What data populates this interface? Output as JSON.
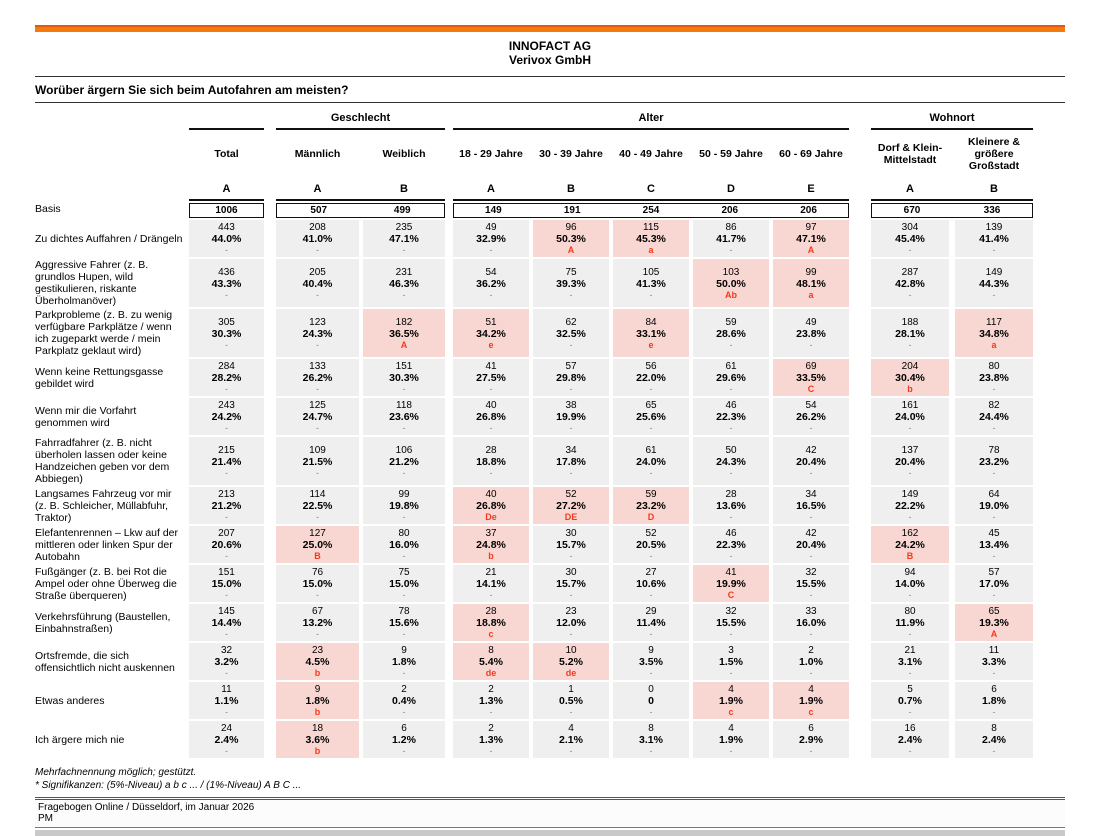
{
  "page": {
    "company": "INNOFACT AG",
    "subtitle": "Verivox GmbH",
    "question": "Worüber ärgern Sie sich beim Autofahren am meisten?"
  },
  "columns": {
    "groups": [
      {
        "label": ""
      },
      {
        "label": "Geschlecht"
      },
      {
        "label": "Alter"
      },
      {
        "label": "Wohnort"
      }
    ],
    "names": [
      "Total",
      "Männlich",
      "Weiblich",
      "18 - 29 Jahre",
      "30 - 39 Jahre",
      "40 - 49 Jahre",
      "50 - 59 Jahre",
      "60 - 69 Jahre",
      "Dorf & Klein-Mittelstadt",
      "Kleinere & größere Großstadt"
    ],
    "letters": [
      "A",
      "A",
      "B",
      "A",
      "B",
      "C",
      "D",
      "E",
      "A",
      "B"
    ]
  },
  "basis": {
    "label": "Basis",
    "values": [
      "1006",
      "507",
      "499",
      "149",
      "191",
      "254",
      "206",
      "206",
      "670",
      "336"
    ]
  },
  "rows": [
    {
      "label": "Zu dichtes Auffahren / Drängeln",
      "cells": [
        {
          "n": "443",
          "p": "44.0%",
          "s": "-",
          "hl": false
        },
        {
          "n": "208",
          "p": "41.0%",
          "s": "-",
          "hl": false
        },
        {
          "n": "235",
          "p": "47.1%",
          "s": "-",
          "hl": false
        },
        {
          "n": "49",
          "p": "32.9%",
          "s": "-",
          "hl": false
        },
        {
          "n": "96",
          "p": "50.3%",
          "s": "A",
          "hl": true
        },
        {
          "n": "115",
          "p": "45.3%",
          "s": "a",
          "hl": true
        },
        {
          "n": "86",
          "p": "41.7%",
          "s": "-",
          "hl": false
        },
        {
          "n": "97",
          "p": "47.1%",
          "s": "A",
          "hl": true
        },
        {
          "n": "304",
          "p": "45.4%",
          "s": "-",
          "hl": false
        },
        {
          "n": "139",
          "p": "41.4%",
          "s": "-",
          "hl": false
        }
      ]
    },
    {
      "label": "Aggressive Fahrer (z. B. grundlos Hupen, wild gestikulieren, riskante Überholmanöver)",
      "cells": [
        {
          "n": "436",
          "p": "43.3%",
          "s": "-",
          "hl": false
        },
        {
          "n": "205",
          "p": "40.4%",
          "s": "-",
          "hl": false
        },
        {
          "n": "231",
          "p": "46.3%",
          "s": "-",
          "hl": false
        },
        {
          "n": "54",
          "p": "36.2%",
          "s": "-",
          "hl": false
        },
        {
          "n": "75",
          "p": "39.3%",
          "s": "-",
          "hl": false
        },
        {
          "n": "105",
          "p": "41.3%",
          "s": "-",
          "hl": false
        },
        {
          "n": "103",
          "p": "50.0%",
          "s": "Ab",
          "hl": true
        },
        {
          "n": "99",
          "p": "48.1%",
          "s": "a",
          "hl": true
        },
        {
          "n": "287",
          "p": "42.8%",
          "s": "-",
          "hl": false
        },
        {
          "n": "149",
          "p": "44.3%",
          "s": "-",
          "hl": false
        }
      ]
    },
    {
      "label": "Parkprobleme (z. B. zu wenig verfügbare Parkplätze / wenn ich zugeparkt werde / mein Parkplatz geklaut wird)",
      "cells": [
        {
          "n": "305",
          "p": "30.3%",
          "s": "-",
          "hl": false
        },
        {
          "n": "123",
          "p": "24.3%",
          "s": "-",
          "hl": false
        },
        {
          "n": "182",
          "p": "36.5%",
          "s": "A",
          "hl": true
        },
        {
          "n": "51",
          "p": "34.2%",
          "s": "e",
          "hl": true
        },
        {
          "n": "62",
          "p": "32.5%",
          "s": "-",
          "hl": false
        },
        {
          "n": "84",
          "p": "33.1%",
          "s": "e",
          "hl": true
        },
        {
          "n": "59",
          "p": "28.6%",
          "s": "-",
          "hl": false
        },
        {
          "n": "49",
          "p": "23.8%",
          "s": "-",
          "hl": false
        },
        {
          "n": "188",
          "p": "28.1%",
          "s": "-",
          "hl": false
        },
        {
          "n": "117",
          "p": "34.8%",
          "s": "a",
          "hl": true
        }
      ]
    },
    {
      "label": "Wenn keine Rettungsgasse gebildet wird",
      "cells": [
        {
          "n": "284",
          "p": "28.2%",
          "s": "-",
          "hl": false
        },
        {
          "n": "133",
          "p": "26.2%",
          "s": "-",
          "hl": false
        },
        {
          "n": "151",
          "p": "30.3%",
          "s": "-",
          "hl": false
        },
        {
          "n": "41",
          "p": "27.5%",
          "s": "-",
          "hl": false
        },
        {
          "n": "57",
          "p": "29.8%",
          "s": "-",
          "hl": false
        },
        {
          "n": "56",
          "p": "22.0%",
          "s": "-",
          "hl": false
        },
        {
          "n": "61",
          "p": "29.6%",
          "s": "-",
          "hl": false
        },
        {
          "n": "69",
          "p": "33.5%",
          "s": "C",
          "hl": true
        },
        {
          "n": "204",
          "p": "30.4%",
          "s": "b",
          "hl": true
        },
        {
          "n": "80",
          "p": "23.8%",
          "s": "-",
          "hl": false
        }
      ]
    },
    {
      "label": "Wenn mir die Vorfahrt genommen wird",
      "cells": [
        {
          "n": "243",
          "p": "24.2%",
          "s": "-",
          "hl": false
        },
        {
          "n": "125",
          "p": "24.7%",
          "s": "-",
          "hl": false
        },
        {
          "n": "118",
          "p": "23.6%",
          "s": "-",
          "hl": false
        },
        {
          "n": "40",
          "p": "26.8%",
          "s": "-",
          "hl": false
        },
        {
          "n": "38",
          "p": "19.9%",
          "s": "-",
          "hl": false
        },
        {
          "n": "65",
          "p": "25.6%",
          "s": "-",
          "hl": false
        },
        {
          "n": "46",
          "p": "22.3%",
          "s": "-",
          "hl": false
        },
        {
          "n": "54",
          "p": "26.2%",
          "s": "-",
          "hl": false
        },
        {
          "n": "161",
          "p": "24.0%",
          "s": "-",
          "hl": false
        },
        {
          "n": "82",
          "p": "24.4%",
          "s": "-",
          "hl": false
        }
      ]
    },
    {
      "label": "Fahrradfahrer (z. B. nicht überholen lassen oder keine Handzeichen geben vor dem Abbiegen)",
      "cells": [
        {
          "n": "215",
          "p": "21.4%",
          "s": "-",
          "hl": false
        },
        {
          "n": "109",
          "p": "21.5%",
          "s": "-",
          "hl": false
        },
        {
          "n": "106",
          "p": "21.2%",
          "s": "-",
          "hl": false
        },
        {
          "n": "28",
          "p": "18.8%",
          "s": "-",
          "hl": false
        },
        {
          "n": "34",
          "p": "17.8%",
          "s": "-",
          "hl": false
        },
        {
          "n": "61",
          "p": "24.0%",
          "s": "-",
          "hl": false
        },
        {
          "n": "50",
          "p": "24.3%",
          "s": "-",
          "hl": false
        },
        {
          "n": "42",
          "p": "20.4%",
          "s": "-",
          "hl": false
        },
        {
          "n": "137",
          "p": "20.4%",
          "s": "-",
          "hl": false
        },
        {
          "n": "78",
          "p": "23.2%",
          "s": "-",
          "hl": false
        }
      ]
    },
    {
      "label": "Langsames Fahrzeug vor mir (z. B. Schleicher, Müllabfuhr, Traktor)",
      "cells": [
        {
          "n": "213",
          "p": "21.2%",
          "s": "-",
          "hl": false
        },
        {
          "n": "114",
          "p": "22.5%",
          "s": "-",
          "hl": false
        },
        {
          "n": "99",
          "p": "19.8%",
          "s": "-",
          "hl": false
        },
        {
          "n": "40",
          "p": "26.8%",
          "s": "De",
          "hl": true
        },
        {
          "n": "52",
          "p": "27.2%",
          "s": "DE",
          "hl": true
        },
        {
          "n": "59",
          "p": "23.2%",
          "s": "D",
          "hl": true
        },
        {
          "n": "28",
          "p": "13.6%",
          "s": "-",
          "hl": false
        },
        {
          "n": "34",
          "p": "16.5%",
          "s": "-",
          "hl": false
        },
        {
          "n": "149",
          "p": "22.2%",
          "s": "-",
          "hl": false
        },
        {
          "n": "64",
          "p": "19.0%",
          "s": "-",
          "hl": false
        }
      ]
    },
    {
      "label": "Elefantenrennen – Lkw auf der mittleren oder linken Spur der Autobahn",
      "cells": [
        {
          "n": "207",
          "p": "20.6%",
          "s": "-",
          "hl": false
        },
        {
          "n": "127",
          "p": "25.0%",
          "s": "B",
          "hl": true
        },
        {
          "n": "80",
          "p": "16.0%",
          "s": "-",
          "hl": false
        },
        {
          "n": "37",
          "p": "24.8%",
          "s": "b",
          "hl": true
        },
        {
          "n": "30",
          "p": "15.7%",
          "s": "-",
          "hl": false
        },
        {
          "n": "52",
          "p": "20.5%",
          "s": "-",
          "hl": false
        },
        {
          "n": "46",
          "p": "22.3%",
          "s": "-",
          "hl": false
        },
        {
          "n": "42",
          "p": "20.4%",
          "s": "-",
          "hl": false
        },
        {
          "n": "162",
          "p": "24.2%",
          "s": "B",
          "hl": true
        },
        {
          "n": "45",
          "p": "13.4%",
          "s": "-",
          "hl": false
        }
      ]
    },
    {
      "label": "Fußgänger (z. B. bei Rot die Ampel oder ohne Überweg die Straße überqueren)",
      "cells": [
        {
          "n": "151",
          "p": "15.0%",
          "s": "-",
          "hl": false
        },
        {
          "n": "76",
          "p": "15.0%",
          "s": "-",
          "hl": false
        },
        {
          "n": "75",
          "p": "15.0%",
          "s": "-",
          "hl": false
        },
        {
          "n": "21",
          "p": "14.1%",
          "s": "-",
          "hl": false
        },
        {
          "n": "30",
          "p": "15.7%",
          "s": "-",
          "hl": false
        },
        {
          "n": "27",
          "p": "10.6%",
          "s": "-",
          "hl": false
        },
        {
          "n": "41",
          "p": "19.9%",
          "s": "C",
          "hl": true
        },
        {
          "n": "32",
          "p": "15.5%",
          "s": "-",
          "hl": false
        },
        {
          "n": "94",
          "p": "14.0%",
          "s": "-",
          "hl": false
        },
        {
          "n": "57",
          "p": "17.0%",
          "s": "-",
          "hl": false
        }
      ]
    },
    {
      "label": "Verkehrsführung (Baustellen, Einbahnstraßen)",
      "cells": [
        {
          "n": "145",
          "p": "14.4%",
          "s": "-",
          "hl": false
        },
        {
          "n": "67",
          "p": "13.2%",
          "s": "-",
          "hl": false
        },
        {
          "n": "78",
          "p": "15.6%",
          "s": "-",
          "hl": false
        },
        {
          "n": "28",
          "p": "18.8%",
          "s": "c",
          "hl": true
        },
        {
          "n": "23",
          "p": "12.0%",
          "s": "-",
          "hl": false
        },
        {
          "n": "29",
          "p": "11.4%",
          "s": "-",
          "hl": false
        },
        {
          "n": "32",
          "p": "15.5%",
          "s": "-",
          "hl": false
        },
        {
          "n": "33",
          "p": "16.0%",
          "s": "-",
          "hl": false
        },
        {
          "n": "80",
          "p": "11.9%",
          "s": "-",
          "hl": false
        },
        {
          "n": "65",
          "p": "19.3%",
          "s": "A",
          "hl": true
        }
      ]
    },
    {
      "label": "Ortsfremde, die sich offensichtlich nicht auskennen",
      "cells": [
        {
          "n": "32",
          "p": "3.2%",
          "s": "-",
          "hl": false
        },
        {
          "n": "23",
          "p": "4.5%",
          "s": "b",
          "hl": true
        },
        {
          "n": "9",
          "p": "1.8%",
          "s": "-",
          "hl": false
        },
        {
          "n": "8",
          "p": "5.4%",
          "s": "de",
          "hl": true
        },
        {
          "n": "10",
          "p": "5.2%",
          "s": "de",
          "hl": true
        },
        {
          "n": "9",
          "p": "3.5%",
          "s": "-",
          "hl": false
        },
        {
          "n": "3",
          "p": "1.5%",
          "s": "-",
          "hl": false
        },
        {
          "n": "2",
          "p": "1.0%",
          "s": "-",
          "hl": false
        },
        {
          "n": "21",
          "p": "3.1%",
          "s": "-",
          "hl": false
        },
        {
          "n": "11",
          "p": "3.3%",
          "s": "-",
          "hl": false
        }
      ]
    },
    {
      "label": "Etwas anderes",
      "cells": [
        {
          "n": "11",
          "p": "1.1%",
          "s": "-",
          "hl": false
        },
        {
          "n": "9",
          "p": "1.8%",
          "s": "b",
          "hl": true
        },
        {
          "n": "2",
          "p": "0.4%",
          "s": "-",
          "hl": false
        },
        {
          "n": "2",
          "p": "1.3%",
          "s": "-",
          "hl": false
        },
        {
          "n": "1",
          "p": "0.5%",
          "s": "-",
          "hl": false
        },
        {
          "n": "0",
          "p": "0",
          "s": "-",
          "hl": false
        },
        {
          "n": "4",
          "p": "1.9%",
          "s": "c",
          "hl": true
        },
        {
          "n": "4",
          "p": "1.9%",
          "s": "c",
          "hl": true
        },
        {
          "n": "5",
          "p": "0.7%",
          "s": "-",
          "hl": false
        },
        {
          "n": "6",
          "p": "1.8%",
          "s": "-",
          "hl": false
        }
      ]
    },
    {
      "label": "Ich ärgere mich nie",
      "cells": [
        {
          "n": "24",
          "p": "2.4%",
          "s": "-",
          "hl": false
        },
        {
          "n": "18",
          "p": "3.6%",
          "s": "b",
          "hl": true
        },
        {
          "n": "6",
          "p": "1.2%",
          "s": "-",
          "hl": false
        },
        {
          "n": "2",
          "p": "1.3%",
          "s": "-",
          "hl": false
        },
        {
          "n": "4",
          "p": "2.1%",
          "s": "-",
          "hl": false
        },
        {
          "n": "8",
          "p": "3.1%",
          "s": "-",
          "hl": false
        },
        {
          "n": "4",
          "p": "1.9%",
          "s": "-",
          "hl": false
        },
        {
          "n": "6",
          "p": "2.9%",
          "s": "-",
          "hl": false
        },
        {
          "n": "16",
          "p": "2.4%",
          "s": "-",
          "hl": false
        },
        {
          "n": "8",
          "p": "2.4%",
          "s": "-",
          "hl": false
        }
      ]
    }
  ],
  "footnotes": {
    "line1": "Mehrfachnennung möglich; gestützt.",
    "line2": "* Signifikanzen: (5%-Niveau) a b c ... / (1%-Niveau) A B C ..."
  },
  "footer": {
    "line1": "Fragebogen Online / Düsseldorf, im Januar 2026",
    "line2": "PM"
  },
  "colors": {
    "accent_orange": "#f57a0d",
    "highlight_pink": "#f8d7d2",
    "cell_gray": "#efefef",
    "significance_red": "#f5391c"
  }
}
